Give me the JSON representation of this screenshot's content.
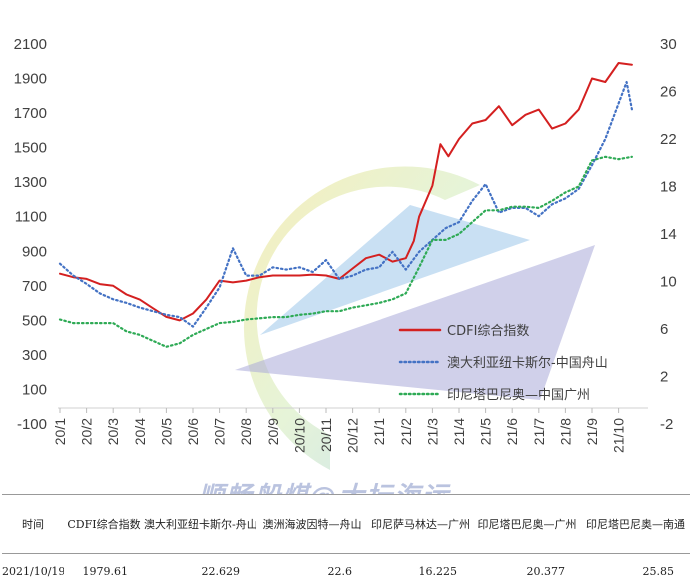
{
  "chart_data": {
    "type": "line",
    "title": "",
    "xlabel": "",
    "ylabel": "",
    "ylim_left": [
      -100,
      2100
    ],
    "ylim_right": [
      -2,
      30
    ],
    "yticks_left": [
      "2100",
      "1900",
      "1700",
      "1500",
      "1300",
      "1100",
      "900",
      "700",
      "500",
      "300",
      "100",
      "-100"
    ],
    "yticks_right": [
      "30",
      "26",
      "22",
      "18",
      "14",
      "10",
      "6",
      "2",
      "-2"
    ],
    "categories": [
      "20/1",
      "20/2",
      "20/3",
      "20/4",
      "20/5",
      "20/6",
      "20/7",
      "20/8",
      "20/9",
      "20/10",
      "20/11",
      "20/12",
      "21/1",
      "21/2",
      "21/3",
      "21/4",
      "21/5",
      "21/6",
      "21/7",
      "21/8",
      "21/9",
      "21/10"
    ],
    "legend_position": "lower-right",
    "series": [
      {
        "name": "CDFI综合指数",
        "axis": "left",
        "style": "solid",
        "color": "#d42020",
        "x": [
          0,
          0.5,
          1,
          1.5,
          2,
          2.5,
          3,
          3.5,
          4,
          4.5,
          5,
          5.5,
          6,
          6.5,
          7,
          7.5,
          8,
          8.5,
          9,
          9.5,
          10,
          10.5,
          11,
          11.5,
          12,
          12.5,
          13,
          13.3,
          13.5,
          14,
          14.3,
          14.6,
          15,
          15.5,
          16,
          16.5,
          17,
          17.5,
          18,
          18.5,
          19,
          19.5,
          20,
          20.5,
          21,
          21.5
        ],
        "values": [
          770,
          750,
          740,
          710,
          700,
          650,
          620,
          570,
          520,
          500,
          540,
          620,
          730,
          720,
          730,
          750,
          760,
          760,
          760,
          765,
          760,
          740,
          800,
          860,
          880,
          840,
          860,
          960,
          1100,
          1280,
          1520,
          1450,
          1550,
          1640,
          1660,
          1740,
          1630,
          1690,
          1720,
          1610,
          1640,
          1720,
          1900,
          1880,
          1990,
          1980
        ]
      },
      {
        "name": "澳大利亚纽卡斯尔-中国舟山",
        "axis": "right",
        "style": "dotted",
        "color": "#4472c4",
        "x": [
          0,
          0.5,
          1,
          1.5,
          2,
          2.5,
          3,
          3.5,
          4,
          4.5,
          5,
          5.5,
          6,
          6.5,
          7,
          7.5,
          8,
          8.5,
          9,
          9.5,
          10,
          10.5,
          11,
          11.5,
          12,
          12.5,
          13,
          13.5,
          14,
          14.5,
          15,
          15.5,
          16,
          16.5,
          17,
          17.5,
          18,
          18.5,
          19,
          19.5,
          20,
          20.5,
          21,
          21.3,
          21.5
        ],
        "values": [
          11.5,
          10.5,
          9.8,
          9,
          8.5,
          8.2,
          7.8,
          7.5,
          7.2,
          7,
          6.2,
          7.8,
          9.5,
          12.8,
          10.5,
          10.5,
          11.2,
          11,
          11.2,
          10.8,
          11.8,
          10.2,
          10.5,
          11,
          11.2,
          12.5,
          11,
          12.5,
          13.5,
          14.5,
          15,
          16.8,
          18.2,
          15.8,
          16.2,
          16.2,
          15.5,
          16.5,
          17,
          17.8,
          19.8,
          22,
          25,
          26.8,
          24.5
        ]
      },
      {
        "name": "印尼塔巴尼奥—中国广州",
        "axis": "right",
        "style": "dotted",
        "color": "#2eaa55",
        "x": [
          0,
          0.5,
          1,
          1.5,
          2,
          2.5,
          3,
          3.5,
          4,
          4.5,
          5,
          5.5,
          6,
          6.5,
          7,
          7.5,
          8,
          8.5,
          9,
          9.5,
          10,
          10.5,
          11,
          11.5,
          12,
          12.5,
          13,
          13.5,
          14,
          14.5,
          15,
          15.5,
          16,
          16.5,
          17,
          17.5,
          18,
          18.5,
          19,
          19.5,
          20,
          20.5,
          21,
          21.5
        ],
        "values": [
          6.8,
          6.5,
          6.5,
          6.5,
          6.5,
          5.8,
          5.5,
          5,
          4.5,
          4.8,
          5.5,
          6,
          6.5,
          6.6,
          6.8,
          6.9,
          7,
          7,
          7.2,
          7.3,
          7.5,
          7.5,
          7.8,
          8,
          8.2,
          8.5,
          9,
          11.2,
          13.5,
          13.5,
          14,
          15,
          16,
          16,
          16.3,
          16.3,
          16.2,
          16.8,
          17.5,
          18,
          20.2,
          20.5,
          20.3,
          20.5
        ]
      }
    ]
  },
  "watermark": "顺畅船煤@大坛海运",
  "table": {
    "headers": [
      "时间",
      "CDFI综合指数",
      "澳大利亚纽卡斯尔-舟山",
      "澳洲海波因特—舟山",
      "印尼萨马林达—广州",
      "印尼塔巴尼奥—广州",
      "印尼塔巴尼奥—南通"
    ],
    "values": [
      "2021/10/19",
      "1979.61",
      "22.629",
      "22.6",
      "16.225",
      "20.377",
      "25.85"
    ]
  }
}
